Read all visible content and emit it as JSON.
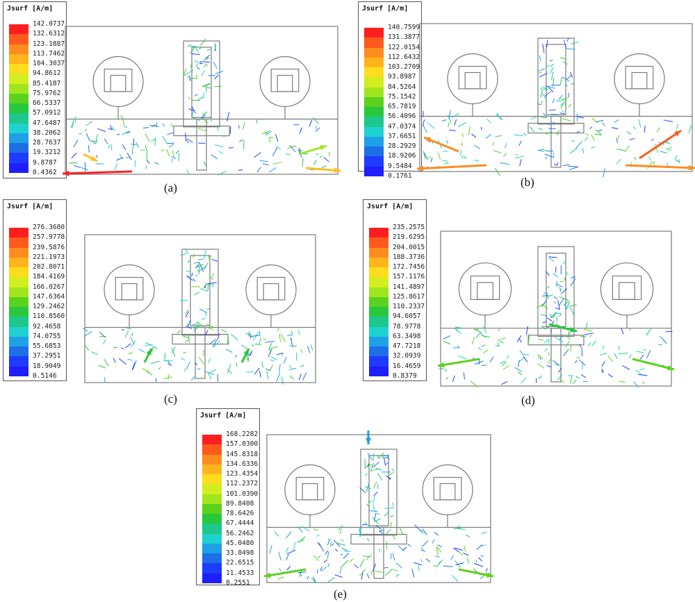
{
  "legend_colors": [
    "#ff1e1e",
    "#ff5a1e",
    "#ff8c1e",
    "#ffb41e",
    "#ffdc1e",
    "#d2ee1e",
    "#a0e61e",
    "#5ad21e",
    "#28c83c",
    "#1ec88c",
    "#1ed2d2",
    "#1ea0e6",
    "#1e6ee6",
    "#1e3cff",
    "#1e1eff"
  ],
  "panels": [
    {
      "legend_title": "Jsurf [A/m]",
      "values": [
        "142.0737",
        "132.6312",
        "123.1887",
        "113.7462",
        "104.3037",
        "94.8612",
        "85.4187",
        "75.9762",
        "66.5337",
        "57.0912",
        "47.6487",
        "38.2062",
        "28.7637",
        "19.3212",
        "9.8787",
        "0.4362"
      ],
      "caption": "(a)"
    },
    {
      "legend_title": "Jsurf [A/m]",
      "values": [
        "140.7599",
        "131.3877",
        "122.0154",
        "112.6432",
        "103.2709",
        "93.8987",
        "84.5264",
        "75.1542",
        "65.7819",
        "56.4096",
        "47.0374",
        "37.6651",
        "28.2929",
        "18.9206",
        "9.5484",
        "0.1761"
      ],
      "caption": "(b)"
    },
    {
      "legend_title": "Jsurf [A/m]",
      "values": [
        "276.3680",
        "257.9778",
        "239.5876",
        "221.1973",
        "202.8071",
        "184.4169",
        "166.0267",
        "147.6364",
        "129.2462",
        "110.8560",
        "92.4658",
        "74.0755",
        "55.6853",
        "37.2951",
        "18.9049",
        "0.5146"
      ],
      "caption": "(c)"
    },
    {
      "legend_title": "Jsurf [A/m]",
      "values": [
        "235.2575",
        "219.6295",
        "204.0015",
        "188.3736",
        "172.7456",
        "157.1176",
        "141.4897",
        "125.8617",
        "110.2337",
        "94.6057",
        "78.9778",
        "63.3498",
        "47.7218",
        "32.0939",
        "16.4659",
        "0.8379"
      ],
      "caption": "(d)"
    },
    {
      "legend_title": "Jsurf [A/m]",
      "values": [
        "168.2282",
        "157.0300",
        "145.8318",
        "134.6336",
        "123.4354",
        "112.2372",
        "101.0390",
        "89.8408",
        "78.6426",
        "67.4444",
        "56.2462",
        "45.0480",
        "33.8498",
        "22.6515",
        "11.4533",
        "0.2551"
      ],
      "caption": "(e)"
    }
  ]
}
